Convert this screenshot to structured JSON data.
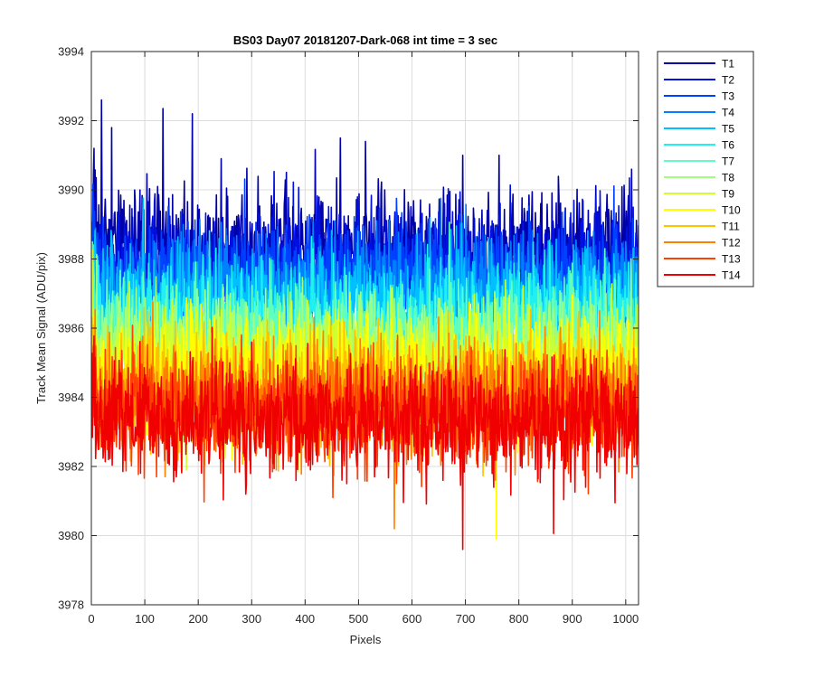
{
  "chart_data": {
    "type": "line",
    "title": "BS03 Day07 20181207-Dark-068 int time = 3 sec",
    "xlabel": "Pixels",
    "ylabel": "Track Mean Signal (ADU/pix)",
    "xlim": [
      0,
      1024
    ],
    "ylim": [
      3978,
      3994
    ],
    "xticks": [
      0,
      100,
      200,
      300,
      400,
      500,
      600,
      700,
      800,
      900,
      1000
    ],
    "yticks": [
      3978,
      3980,
      3982,
      3984,
      3986,
      3988,
      3990,
      3992,
      3994
    ],
    "grid": true,
    "legend_position": "outside-right-top",
    "n_points": 1024,
    "series": [
      {
        "name": "T1",
        "color": "#0000a8",
        "mean": 3988.3,
        "spread": 0.85,
        "peaks": [
          [
            18,
            3992.6
          ],
          [
            133,
            3992.35
          ],
          [
            188,
            3992.2
          ],
          [
            37,
            3991.8
          ],
          [
            465,
            3991.5
          ],
          [
            4,
            3991.2
          ],
          [
            242,
            3990.9
          ],
          [
            512,
            3991.4
          ],
          [
            694,
            3991.0
          ],
          [
            762,
            3991.0
          ]
        ]
      },
      {
        "name": "T2",
        "color": "#0010e0",
        "mean": 3987.9,
        "spread": 0.8
      },
      {
        "name": "T3",
        "color": "#0040ff",
        "mean": 3987.5,
        "spread": 0.8
      },
      {
        "name": "T4",
        "color": "#0080ff",
        "mean": 3987.1,
        "spread": 0.8
      },
      {
        "name": "T5",
        "color": "#00c0ff",
        "mean": 3986.7,
        "spread": 0.8
      },
      {
        "name": "T6",
        "color": "#20f0f0",
        "mean": 3986.2,
        "spread": 0.8
      },
      {
        "name": "T7",
        "color": "#60ffc0",
        "mean": 3985.8,
        "spread": 0.8
      },
      {
        "name": "T8",
        "color": "#a0ff80",
        "mean": 3985.4,
        "spread": 0.8
      },
      {
        "name": "T9",
        "color": "#d0ff30",
        "mean": 3985.0,
        "spread": 0.8
      },
      {
        "name": "T10",
        "color": "#ffff00",
        "mean": 3984.6,
        "spread": 0.8,
        "dips": [
          [
            757,
            3979.9
          ]
        ]
      },
      {
        "name": "T11",
        "color": "#ffc000",
        "mean": 3984.2,
        "spread": 0.8
      },
      {
        "name": "T12",
        "color": "#ff8000",
        "mean": 3983.9,
        "spread": 0.8,
        "dips": [
          [
            566,
            3980.2
          ]
        ]
      },
      {
        "name": "T13",
        "color": "#ff4000",
        "mean": 3983.6,
        "spread": 0.8
      },
      {
        "name": "T14",
        "color": "#f00000",
        "mean": 3983.4,
        "spread": 0.8,
        "dips": [
          [
            694,
            3979.6
          ]
        ]
      }
    ]
  }
}
